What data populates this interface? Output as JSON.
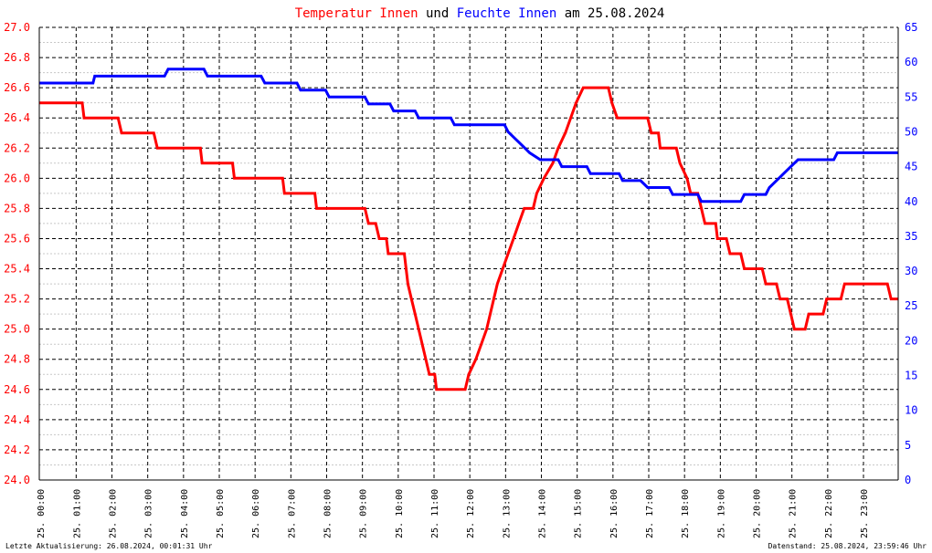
{
  "title_parts": {
    "temp": "Temperatur Innen",
    "und": "und",
    "hum": "Feuchte Innen",
    "date_part": "am 25.08.2024"
  },
  "footer": {
    "left": "Letzte Aktualisierung: 26.08.2024, 00:01:31 Uhr",
    "right": "Datenstand: 25.08.2024, 23:59:46 Uhr"
  },
  "colors": {
    "temp": "#ff0000",
    "hum": "#0000ff",
    "grid": "#000000",
    "minor_grid": "#c8c8c8"
  },
  "chart_data": {
    "type": "line",
    "x_unit": "hour",
    "xlim": [
      0,
      24
    ],
    "x_ticks": [
      "25. 00:00",
      "25. 01:00",
      "25. 02:00",
      "25. 03:00",
      "25. 04:00",
      "25. 05:00",
      "25. 06:00",
      "25. 07:00",
      "25. 08:00",
      "25. 09:00",
      "25. 10:00",
      "25. 11:00",
      "25. 12:00",
      "25. 13:00",
      "25. 14:00",
      "25. 15:00",
      "25. 16:00",
      "25. 17:00",
      "25. 18:00",
      "25. 19:00",
      "25. 20:00",
      "25. 21:00",
      "25. 22:00",
      "25. 23:00"
    ],
    "y_left": {
      "ylim": [
        24.0,
        27.0
      ],
      "ticks": [
        "24.0",
        "24.2",
        "24.4",
        "24.6",
        "24.8",
        "25.0",
        "25.2",
        "25.4",
        "25.6",
        "25.8",
        "26.0",
        "26.2",
        "26.4",
        "26.6",
        "26.8",
        "27.0"
      ]
    },
    "y_right": {
      "ylim": [
        0,
        65
      ],
      "ticks": [
        "0",
        "5",
        "10",
        "15",
        "20",
        "25",
        "30",
        "35",
        "40",
        "45",
        "50",
        "55",
        "60",
        "65"
      ]
    },
    "series": [
      {
        "name": "Temperatur Innen",
        "axis": "left",
        "points": [
          [
            0,
            26.5
          ],
          [
            1.2,
            26.5
          ],
          [
            1.25,
            26.4
          ],
          [
            2.2,
            26.4
          ],
          [
            2.3,
            26.3
          ],
          [
            3.2,
            26.3
          ],
          [
            3.3,
            26.2
          ],
          [
            4.5,
            26.2
          ],
          [
            4.55,
            26.1
          ],
          [
            5.4,
            26.1
          ],
          [
            5.45,
            26.0
          ],
          [
            6.8,
            26.0
          ],
          [
            6.85,
            25.9
          ],
          [
            7.7,
            25.9
          ],
          [
            7.75,
            25.8
          ],
          [
            9.1,
            25.8
          ],
          [
            9.2,
            25.7
          ],
          [
            9.4,
            25.7
          ],
          [
            9.5,
            25.6
          ],
          [
            9.7,
            25.6
          ],
          [
            9.75,
            25.5
          ],
          [
            10.2,
            25.5
          ],
          [
            10.3,
            25.3
          ],
          [
            10.4,
            25.2
          ],
          [
            10.5,
            25.1
          ],
          [
            10.6,
            25.0
          ],
          [
            10.7,
            24.9
          ],
          [
            10.8,
            24.8
          ],
          [
            10.9,
            24.7
          ],
          [
            11.05,
            24.7
          ],
          [
            11.1,
            24.6
          ],
          [
            11.9,
            24.6
          ],
          [
            12.0,
            24.7
          ],
          [
            12.2,
            24.8
          ],
          [
            12.35,
            24.9
          ],
          [
            12.5,
            25.0
          ],
          [
            12.6,
            25.1
          ],
          [
            12.7,
            25.2
          ],
          [
            12.8,
            25.3
          ],
          [
            12.95,
            25.4
          ],
          [
            13.1,
            25.5
          ],
          [
            13.25,
            25.6
          ],
          [
            13.4,
            25.7
          ],
          [
            13.55,
            25.8
          ],
          [
            13.8,
            25.8
          ],
          [
            13.9,
            25.9
          ],
          [
            14.1,
            26.0
          ],
          [
            14.35,
            26.1
          ],
          [
            14.5,
            26.2
          ],
          [
            14.7,
            26.3
          ],
          [
            14.85,
            26.4
          ],
          [
            15.0,
            26.5
          ],
          [
            15.2,
            26.6
          ],
          [
            15.9,
            26.6
          ],
          [
            16.0,
            26.5
          ],
          [
            16.15,
            26.4
          ],
          [
            17.0,
            26.4
          ],
          [
            17.1,
            26.3
          ],
          [
            17.3,
            26.3
          ],
          [
            17.35,
            26.2
          ],
          [
            17.8,
            26.2
          ],
          [
            17.9,
            26.1
          ],
          [
            18.1,
            26.0
          ],
          [
            18.2,
            25.9
          ],
          [
            18.4,
            25.9
          ],
          [
            18.5,
            25.8
          ],
          [
            18.6,
            25.7
          ],
          [
            18.9,
            25.7
          ],
          [
            18.95,
            25.6
          ],
          [
            19.2,
            25.6
          ],
          [
            19.3,
            25.5
          ],
          [
            19.6,
            25.5
          ],
          [
            19.7,
            25.4
          ],
          [
            20.2,
            25.4
          ],
          [
            20.3,
            25.3
          ],
          [
            20.6,
            25.3
          ],
          [
            20.7,
            25.2
          ],
          [
            20.9,
            25.2
          ],
          [
            21.0,
            25.1
          ],
          [
            21.1,
            25.0
          ],
          [
            21.4,
            25.0
          ],
          [
            21.5,
            25.1
          ],
          [
            21.9,
            25.1
          ],
          [
            22.0,
            25.2
          ],
          [
            22.4,
            25.2
          ],
          [
            22.5,
            25.3
          ],
          [
            23.7,
            25.3
          ],
          [
            23.8,
            25.2
          ],
          [
            24.0,
            25.2
          ]
        ]
      },
      {
        "name": "Feuchte Innen",
        "axis": "right",
        "points": [
          [
            0,
            57
          ],
          [
            1.5,
            57
          ],
          [
            1.55,
            58
          ],
          [
            3.5,
            58
          ],
          [
            3.6,
            59
          ],
          [
            4.6,
            59
          ],
          [
            4.7,
            58
          ],
          [
            6.2,
            58
          ],
          [
            6.3,
            57
          ],
          [
            7.2,
            57
          ],
          [
            7.3,
            56
          ],
          [
            8.0,
            56
          ],
          [
            8.1,
            55
          ],
          [
            9.1,
            55
          ],
          [
            9.2,
            54
          ],
          [
            9.8,
            54
          ],
          [
            9.9,
            53
          ],
          [
            10.5,
            53
          ],
          [
            10.6,
            52
          ],
          [
            11.5,
            52
          ],
          [
            11.6,
            51
          ],
          [
            13.0,
            51
          ],
          [
            13.1,
            50
          ],
          [
            13.3,
            49
          ],
          [
            13.5,
            48
          ],
          [
            13.7,
            47
          ],
          [
            14.0,
            46
          ],
          [
            14.5,
            46
          ],
          [
            14.6,
            45
          ],
          [
            15.3,
            45
          ],
          [
            15.4,
            44
          ],
          [
            16.2,
            44
          ],
          [
            16.3,
            43
          ],
          [
            16.8,
            43
          ],
          [
            17.0,
            42
          ],
          [
            17.6,
            42
          ],
          [
            17.7,
            41
          ],
          [
            18.4,
            41
          ],
          [
            18.5,
            40
          ],
          [
            19.6,
            40
          ],
          [
            19.7,
            41
          ],
          [
            20.3,
            41
          ],
          [
            20.4,
            42
          ],
          [
            20.6,
            43
          ],
          [
            20.8,
            44
          ],
          [
            21.0,
            45
          ],
          [
            21.2,
            46
          ],
          [
            22.2,
            46
          ],
          [
            22.3,
            47
          ],
          [
            24.0,
            47
          ]
        ]
      }
    ]
  }
}
